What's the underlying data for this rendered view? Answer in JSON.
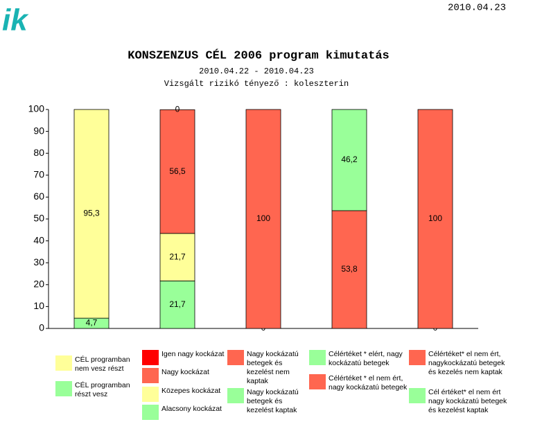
{
  "logo": "ik",
  "date": "2010.04.23",
  "chart_data": {
    "type": "bar",
    "title": "KONSZENZUS CÉL 2006 program kimutatás",
    "subtitle": "2010.04.22 - 2010.04.23",
    "annotation": "Vizsgált rizikó tényező : koleszterin",
    "ylim": [
      0,
      100
    ],
    "yticks": [
      0,
      10,
      20,
      30,
      40,
      50,
      60,
      70,
      80,
      90,
      100
    ],
    "groups": [
      {
        "segments": [
          {
            "name": "CÉL programban nem vesz részt",
            "color": "#ffff99",
            "value": 95.3,
            "value_label": "95,3"
          },
          {
            "name": "CÉL programban részt vesz",
            "color": "#99ff99",
            "value": 4.7,
            "value_label": "4,7"
          }
        ]
      },
      {
        "segments": [
          {
            "name": "Igen nagy kockázat",
            "color": "#ff0000",
            "value": 0
          },
          {
            "name": "Nagy kockázat",
            "color": "#ff6650",
            "value": 56.5,
            "value_label": "56,5"
          },
          {
            "name": "Közepes kockázat",
            "color": "#ffff99",
            "value": 21.7,
            "value_label": "21,7"
          },
          {
            "name": "Alacsony kockázat",
            "color": "#99ff99",
            "value": 21.7,
            "value_label": "21,7"
          }
        ]
      },
      {
        "segments": [
          {
            "name": "Nagy kockázatú betegek és kezelést nem kaptak",
            "color": "#ff6650",
            "value": 100
          },
          {
            "name": "Nagy kockázatú betegek és kezelést kaptak",
            "color": "#99ff99",
            "value": 0
          }
        ]
      },
      {
        "segments": [
          {
            "name": "Célértéket * elért, nagy kockázatú betegek",
            "color": "#99ff99",
            "value": 46.2,
            "value_label": "46,2"
          },
          {
            "name": "Célértéket * el nem ért, nagy kockázatú betegek",
            "color": "#ff6650",
            "value": 53.8,
            "value_label": "53,8"
          }
        ]
      },
      {
        "segments": [
          {
            "name": "Célértéket* el nem ért, nagykockázatú betegek és kezelés nem kaptak",
            "color": "#ff6650",
            "value": 100
          },
          {
            "name": "Cél értéket* el nem ért nagy kockázatú betegek és kezelést kaptak",
            "color": "#99ff99",
            "value": 0
          }
        ]
      }
    ]
  }
}
